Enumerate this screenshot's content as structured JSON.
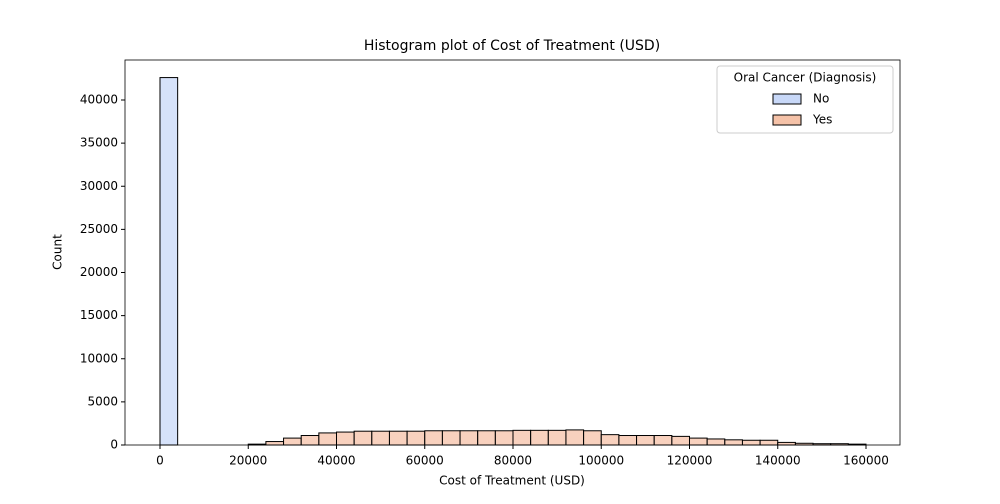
{
  "chart_data": {
    "type": "histogram",
    "title": "Histogram plot of Cost of Treatment (USD)",
    "x_label": "Cost of Treatment (USD)",
    "y_label": "Count",
    "bins": [
      0,
      4000,
      8000,
      12000,
      16000,
      20000,
      24000,
      28000,
      32000,
      36000,
      40000,
      44000,
      48000,
      52000,
      56000,
      60000,
      64000,
      68000,
      72000,
      76000,
      80000,
      84000,
      88000,
      92000,
      96000,
      100000,
      104000,
      108000,
      112000,
      116000,
      120000,
      124000,
      128000,
      132000,
      136000,
      140000,
      144000,
      148000,
      152000,
      156000,
      160000
    ],
    "series": [
      {
        "name": "No",
        "color": "#c8d8f8",
        "values": [
          42600,
          0,
          0,
          0,
          0,
          0,
          0,
          0,
          0,
          0,
          0,
          0,
          0,
          0,
          0,
          0,
          0,
          0,
          0,
          0,
          0,
          0,
          0,
          0,
          0,
          0,
          0,
          0,
          0,
          0,
          0,
          0,
          0,
          0,
          0,
          0,
          0,
          0,
          0,
          0
        ]
      },
      {
        "name": "Yes",
        "color": "#f5c2a8",
        "values": [
          0,
          0,
          0,
          0,
          0,
          100,
          400,
          800,
          1100,
          1400,
          1500,
          1600,
          1600,
          1600,
          1600,
          1650,
          1650,
          1650,
          1650,
          1650,
          1700,
          1700,
          1700,
          1750,
          1650,
          1200,
          1100,
          1100,
          1100,
          1000,
          800,
          700,
          600,
          550,
          550,
          300,
          200,
          150,
          150,
          100
        ]
      }
    ],
    "legend_title": "Oral Cancer (Diagnosis)",
    "legend": "upper right",
    "xlim": [
      -7932,
      167706
    ],
    "ylim": [
      0,
      44638
    ],
    "xticks": [
      0,
      20000,
      40000,
      60000,
      80000,
      100000,
      120000,
      140000,
      160000
    ],
    "yticks": [
      0,
      5000,
      10000,
      15000,
      20000,
      25000,
      30000,
      35000,
      40000
    ]
  }
}
